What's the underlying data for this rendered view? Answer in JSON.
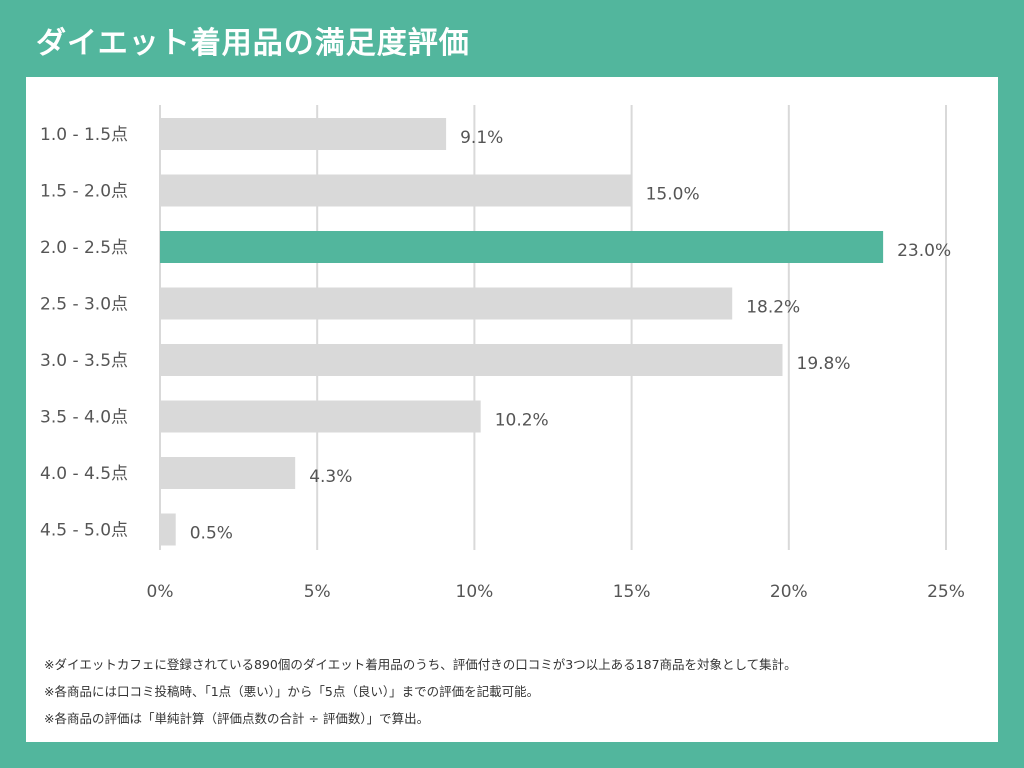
{
  "title": "ダイエット着用品の満足度評価",
  "colors": {
    "background": "#52b69d",
    "highlight_bar": "#52b69d",
    "bar": "#d9d9d9",
    "grid": "#d9d9d9"
  },
  "chart_data": {
    "type": "bar",
    "orientation": "horizontal",
    "categories": [
      "1.0 - 1.5点",
      "1.5 - 2.0点",
      "2.0 - 2.5点",
      "2.5 - 3.0点",
      "3.0 - 3.5点",
      "3.5 - 4.0点",
      "4.0 - 4.5点",
      "4.5 - 5.0点"
    ],
    "values": [
      9.1,
      15.0,
      23.0,
      18.2,
      19.8,
      10.2,
      4.3,
      0.5
    ],
    "value_labels": [
      "9.1%",
      "15.0%",
      "23.0%",
      "18.2%",
      "19.8%",
      "10.2%",
      "4.3%",
      "0.5%"
    ],
    "highlight_index": 2,
    "xlim": [
      0,
      25
    ],
    "xticks": [
      0,
      5,
      10,
      15,
      20,
      25
    ],
    "xtick_labels": [
      "0%",
      "5%",
      "10%",
      "15%",
      "20%",
      "25%"
    ],
    "grid": true,
    "legend": false
  },
  "notes": [
    "※ダイエットカフェに登録されている890個のダイエット着用品のうち、評価付きの口コミが3つ以上ある187商品を対象として集計。",
    "※各商品には口コミ投稿時、「1点（悪い）」から「5点（良い）」までの評価を記載可能。",
    "※各商品の評価は「単純計算（評価点数の合計 ÷ 評価数）」で算出。"
  ]
}
